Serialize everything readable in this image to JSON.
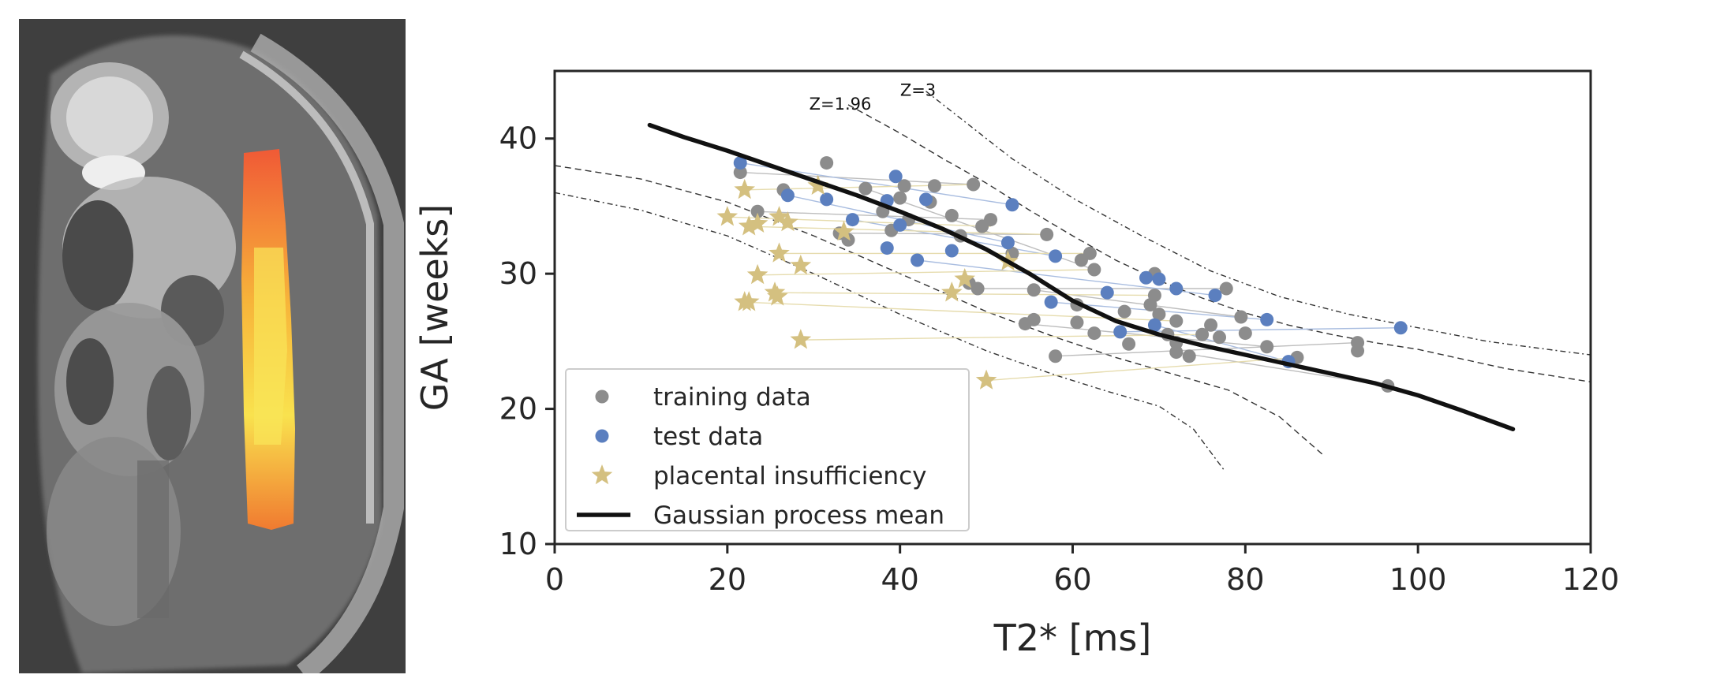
{
  "colors": {
    "training": "#8c8c8c",
    "test": "#5b7fbf",
    "placental": "#d4c080",
    "gp_mean": "#111111",
    "training_link": "#bdbdbd",
    "test_link": "#a9bde0",
    "placental_link": "#e6dcae"
  },
  "chart_data": {
    "type": "scatter",
    "title": "",
    "xlabel": "T2* [ms]",
    "ylabel": "GA [weeks]",
    "xlim": [
      0,
      120
    ],
    "ylim": [
      10,
      45
    ],
    "xticks": [
      0,
      20,
      40,
      60,
      80,
      100,
      120
    ],
    "yticks": [
      10,
      20,
      30,
      40
    ],
    "grid": false,
    "legend_position": "lower-left",
    "legend": [
      "training data",
      "test data",
      "placental insufficiency",
      "Gaussian process mean"
    ],
    "z_labels": [
      "Z=1.96",
      "Z=3"
    ],
    "series": [
      {
        "name": "training data",
        "marker": "circle",
        "points": [
          [
            21.5,
            37.5
          ],
          [
            31.5,
            38.2
          ],
          [
            26.5,
            36.2
          ],
          [
            36,
            36.3
          ],
          [
            40.5,
            36.5
          ],
          [
            44,
            36.5
          ],
          [
            48.5,
            36.6
          ],
          [
            23.5,
            34.6
          ],
          [
            38,
            34.6
          ],
          [
            40,
            35.6
          ],
          [
            43.5,
            35.3
          ],
          [
            46,
            34.3
          ],
          [
            49.5,
            33.5
          ],
          [
            50.5,
            34
          ],
          [
            33,
            33
          ],
          [
            34,
            32.5
          ],
          [
            39,
            33.2
          ],
          [
            41,
            34
          ],
          [
            47,
            32.8
          ],
          [
            57,
            32.9
          ],
          [
            53,
            31.5
          ],
          [
            61,
            31
          ],
          [
            62,
            31.5
          ],
          [
            62.5,
            30.3
          ],
          [
            69.5,
            30
          ],
          [
            48,
            29.3
          ],
          [
            49,
            28.9
          ],
          [
            55.5,
            28.8
          ],
          [
            60.5,
            27.7
          ],
          [
            66,
            27.2
          ],
          [
            69.5,
            28.4
          ],
          [
            69,
            27.7
          ],
          [
            70,
            27
          ],
          [
            72,
            26.5
          ],
          [
            76,
            26.2
          ],
          [
            79.5,
            26.8
          ],
          [
            77.8,
            28.9
          ],
          [
            54.5,
            26.3
          ],
          [
            55.5,
            26.6
          ],
          [
            60.5,
            26.4
          ],
          [
            62.5,
            25.6
          ],
          [
            66.5,
            24.8
          ],
          [
            71,
            25.5
          ],
          [
            72,
            24.9
          ],
          [
            75,
            25.5
          ],
          [
            77,
            25.3
          ],
          [
            80,
            25.6
          ],
          [
            82.5,
            24.6
          ],
          [
            86,
            23.8
          ],
          [
            58,
            23.9
          ],
          [
            72,
            24.2
          ],
          [
            73.5,
            23.9
          ],
          [
            93,
            24.9
          ],
          [
            93,
            24.3
          ],
          [
            96.5,
            21.7
          ]
        ]
      },
      {
        "name": "test data",
        "marker": "circle",
        "points": [
          [
            21.5,
            38.2
          ],
          [
            27,
            35.8
          ],
          [
            31.5,
            35.5
          ],
          [
            39.5,
            37.2
          ],
          [
            38.5,
            35.4
          ],
          [
            43,
            35.5
          ],
          [
            53,
            35.1
          ],
          [
            34.5,
            34
          ],
          [
            40,
            33.6
          ],
          [
            38.5,
            31.9
          ],
          [
            42,
            31
          ],
          [
            46,
            31.7
          ],
          [
            52.5,
            32.3
          ],
          [
            58,
            31.3
          ],
          [
            68.5,
            29.7
          ],
          [
            70,
            29.6
          ],
          [
            72,
            28.9
          ],
          [
            76.5,
            28.4
          ],
          [
            57.5,
            27.9
          ],
          [
            64,
            28.6
          ],
          [
            65.5,
            25.7
          ],
          [
            69.5,
            26.2
          ],
          [
            82.5,
            26.6
          ],
          [
            85,
            23.5
          ],
          [
            98,
            26
          ]
        ]
      },
      {
        "name": "placental insufficiency",
        "marker": "star",
        "points": [
          [
            22,
            36.2
          ],
          [
            30.5,
            36.5
          ],
          [
            20,
            34.2
          ],
          [
            22.5,
            33.5
          ],
          [
            23.5,
            33.7
          ],
          [
            26,
            34.2
          ],
          [
            27,
            33.8
          ],
          [
            33.5,
            33.1
          ],
          [
            26,
            31.5
          ],
          [
            28.5,
            30.6
          ],
          [
            23.5,
            29.9
          ],
          [
            47.5,
            29.6
          ],
          [
            52.5,
            30.9
          ],
          [
            25.5,
            28.6
          ],
          [
            25.8,
            28.3
          ],
          [
            22,
            27.9
          ],
          [
            22.5,
            27.9
          ],
          [
            46,
            28.6
          ],
          [
            28.5,
            25.1
          ],
          [
            50,
            22.1
          ]
        ]
      }
    ],
    "links": [
      {
        "series": "training data",
        "segments": [
          [
            [
              21.5,
              37.5
            ],
            [
              48.5,
              36.6
            ]
          ],
          [
            [
              23.5,
              34.6
            ],
            [
              50.5,
              34
            ]
          ],
          [
            [
              33,
              33
            ],
            [
              57,
              32.9
            ]
          ],
          [
            [
              36,
              36.3
            ],
            [
              62.5,
              30.3
            ]
          ],
          [
            [
              49,
              28.9
            ],
            [
              77.8,
              28.9
            ]
          ],
          [
            [
              55.5,
              28.8
            ],
            [
              79.5,
              26.8
            ]
          ],
          [
            [
              54.5,
              26.3
            ],
            [
              82.5,
              24.6
            ]
          ],
          [
            [
              58,
              23.9
            ],
            [
              93,
              24.9
            ]
          ],
          [
            [
              72,
              24.2
            ],
            [
              96.5,
              21.7
            ]
          ]
        ]
      },
      {
        "series": "test data",
        "segments": [
          [
            [
              21.5,
              38.2
            ],
            [
              53,
              35.1
            ]
          ],
          [
            [
              27,
              35.8
            ],
            [
              52.5,
              32.3
            ]
          ],
          [
            [
              34.5,
              34
            ],
            [
              58,
              31.3
            ]
          ],
          [
            [
              42,
              31
            ],
            [
              76.5,
              28.4
            ]
          ],
          [
            [
              57.5,
              27.9
            ],
            [
              82.5,
              26.6
            ]
          ],
          [
            [
              65.5,
              25.7
            ],
            [
              98,
              26
            ]
          ],
          [
            [
              69.5,
              26.2
            ],
            [
              85,
              23.5
            ]
          ]
        ]
      },
      {
        "series": "placental insufficiency",
        "segments": [
          [
            [
              22,
              36.2
            ],
            [
              48.5,
              36.6
            ]
          ],
          [
            [
              20,
              34.2
            ],
            [
              50.5,
              33.5
            ]
          ],
          [
            [
              22.5,
              33.5
            ],
            [
              57,
              32.9
            ]
          ],
          [
            [
              26,
              31.5
            ],
            [
              62,
              31.5
            ]
          ],
          [
            [
              23.5,
              29.9
            ],
            [
              62.5,
              30.3
            ]
          ],
          [
            [
              25.5,
              28.6
            ],
            [
              69.5,
              28.4
            ]
          ],
          [
            [
              22,
              27.9
            ],
            [
              72,
              26.5
            ]
          ],
          [
            [
              28.5,
              25.1
            ],
            [
              75,
              25.5
            ]
          ],
          [
            [
              50,
              22.1
            ],
            [
              86,
              23.8
            ]
          ]
        ]
      }
    ],
    "gp_mean": {
      "name": "Gaussian process mean",
      "points": [
        [
          11,
          41
        ],
        [
          15,
          40.1
        ],
        [
          20,
          39.1
        ],
        [
          25,
          38
        ],
        [
          30,
          36.9
        ],
        [
          35,
          35.8
        ],
        [
          40,
          34.6
        ],
        [
          45,
          33.3
        ],
        [
          50,
          31.8
        ],
        [
          55,
          30
        ],
        [
          60,
          28
        ],
        [
          65,
          26.5
        ],
        [
          70,
          25.5
        ],
        [
          75,
          24.7
        ],
        [
          80,
          24
        ],
        [
          85,
          23.3
        ],
        [
          90,
          22.6
        ],
        [
          95,
          21.9
        ],
        [
          100,
          21
        ],
        [
          105,
          19.9
        ],
        [
          111,
          18.5
        ]
      ]
    },
    "z_contours": [
      {
        "label": "Z=1.96",
        "upper": [
          [
            34,
            42.5
          ],
          [
            40,
            40.4
          ],
          [
            45,
            38.5
          ],
          [
            50,
            36.7
          ],
          [
            55,
            34.7
          ],
          [
            60,
            32.8
          ],
          [
            65,
            31
          ],
          [
            70,
            29.5
          ],
          [
            75,
            28.2
          ],
          [
            80,
            27.1
          ],
          [
            85,
            26.2
          ],
          [
            90,
            25.5
          ],
          [
            95,
            24.9
          ],
          [
            100,
            24.4
          ],
          [
            110,
            23
          ],
          [
            120,
            22
          ]
        ],
        "lower": [
          [
            0,
            38
          ],
          [
            10,
            37
          ],
          [
            20,
            35.3
          ],
          [
            30,
            32.8
          ],
          [
            40,
            30
          ],
          [
            50,
            27.2
          ],
          [
            58,
            25.3
          ],
          [
            65,
            23.8
          ],
          [
            72,
            22.5
          ],
          [
            78,
            21.4
          ],
          [
            84,
            19.4
          ],
          [
            89,
            16.6
          ]
        ]
      },
      {
        "label": "Z=3",
        "upper": [
          [
            43,
            43.5
          ],
          [
            48,
            41
          ],
          [
            53,
            38.5
          ],
          [
            60,
            35.6
          ],
          [
            68,
            32.8
          ],
          [
            76,
            30.2
          ],
          [
            84,
            28.3
          ],
          [
            92,
            27
          ],
          [
            100,
            26
          ],
          [
            108,
            25
          ],
          [
            115,
            24.4
          ],
          [
            120,
            24
          ]
        ],
        "lower": [
          [
            0,
            36
          ],
          [
            10,
            34.7
          ],
          [
            20,
            32.8
          ],
          [
            30,
            30
          ],
          [
            40,
            27
          ],
          [
            50,
            24.3
          ],
          [
            58,
            22.5
          ],
          [
            64,
            21.3
          ],
          [
            70,
            20.2
          ],
          [
            74,
            18.5
          ],
          [
            77.5,
            15.5
          ]
        ]
      }
    ]
  }
}
